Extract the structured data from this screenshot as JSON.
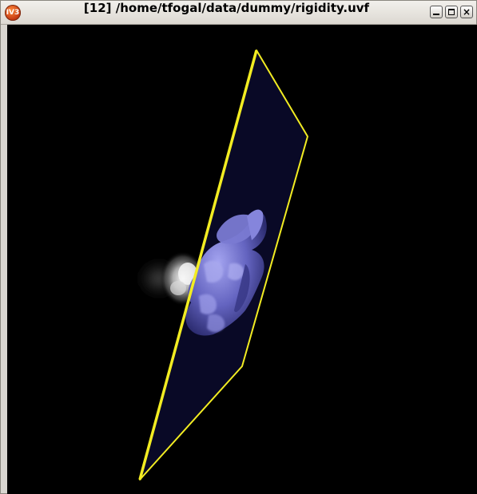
{
  "window": {
    "title": "[12] /home/tfogal/data/dummy/rigidity.uvf",
    "app_icon": "imagevis3d-app-icon",
    "buttons": [
      "minimize-button",
      "maximize-button",
      "close-button"
    ],
    "close_glyph": "×"
  },
  "render": {
    "background_color": "#000000",
    "clip_plane_color": "#f2ec22",
    "plane_fill_color": "#0a0a2a",
    "isosurface_color": "#6a6ac8"
  }
}
